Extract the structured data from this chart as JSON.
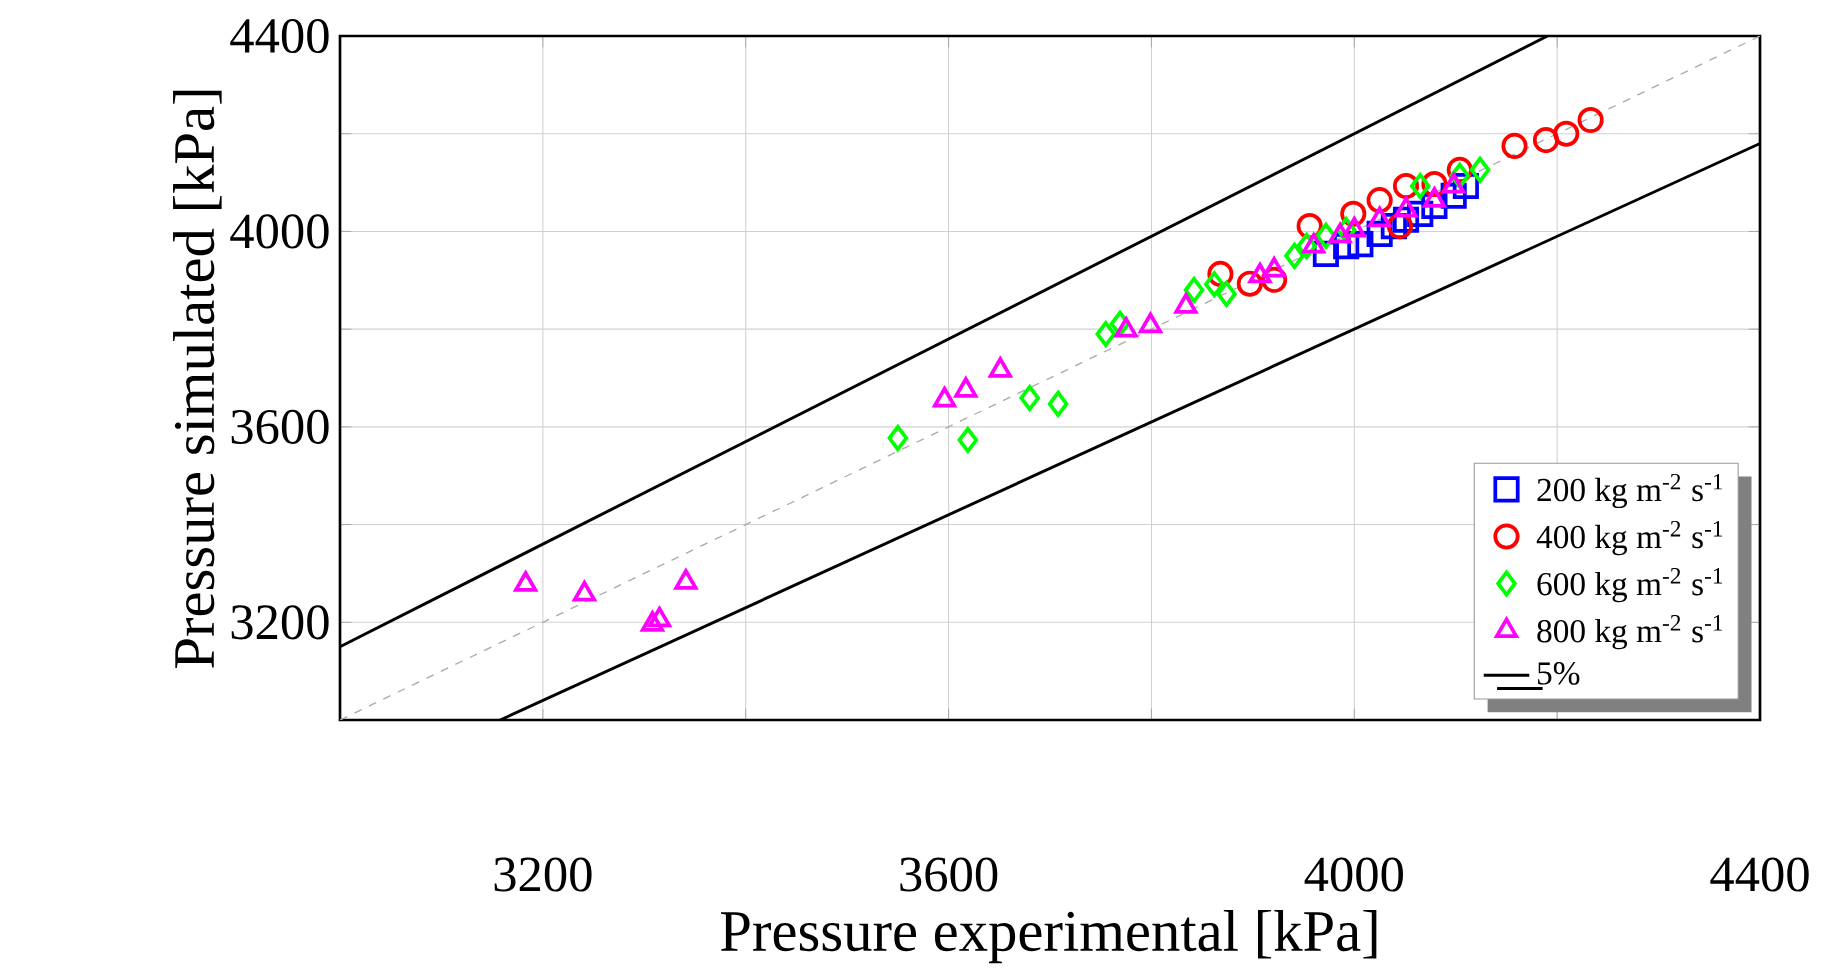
{
  "chart_data": {
    "type": "scatter",
    "xlabel": "Pressure experimental [kPa]",
    "ylabel": "Pressure simulated [kPa]",
    "xlim": [
      3000,
      4400
    ],
    "ylim": [
      3000,
      4400
    ],
    "xticks": [
      3200,
      {
        "value": 3400,
        "label": null
      },
      3600,
      {
        "value": 3800,
        "label": null
      },
      4000,
      {
        "value": 4200,
        "label": null
      },
      4400
    ],
    "yticks": [
      3200,
      {
        "value": 3400,
        "label": null
      },
      3600,
      {
        "value": 3800,
        "label": null
      },
      4000,
      {
        "value": 4200,
        "label": null
      },
      4400
    ],
    "grid": true,
    "legend": "bottom right",
    "series": [
      {
        "name": "200 kg m$^{-2}$ s$^{-1}$",
        "marker": "square",
        "color": "#0000ff",
        "x": [
          3972,
          3992,
          4006,
          4025,
          4039,
          4051,
          4065,
          4079,
          4098,
          4110
        ],
        "values": [
          3954,
          3970,
          3974,
          3995,
          4011,
          4024,
          4036,
          4052,
          4073,
          4093
        ]
      },
      {
        "name": "400 kg m$^{-2}$ s$^{-1}$",
        "marker": "circle",
        "color": "#ff0000",
        "x": [
          3868,
          3897,
          3921,
          3956,
          3999,
          4025,
          4045,
          4051,
          4079,
          4104,
          4158,
          4189,
          4209,
          4233
        ],
        "values": [
          3913,
          3893,
          3901,
          4011,
          4036,
          4064,
          4011,
          4093,
          4097,
          4126,
          4175,
          4187,
          4200,
          4228
        ]
      },
      {
        "name": "600 kg m$^{-2}$ s$^{-1}$",
        "marker": "diamond",
        "color": "#00ff00",
        "x": [
          3550,
          3619,
          3680,
          3708,
          3755,
          3769,
          3842,
          3862,
          3874,
          3941,
          3953,
          3972,
          3992,
          4065,
          4104,
          4124
        ],
        "values": [
          3577,
          3573,
          3659,
          3647,
          3790,
          3811,
          3880,
          3892,
          3872,
          3950,
          3970,
          3991,
          4003,
          4093,
          4114,
          4126
        ]
      },
      {
        "name": "800 kg m$^{-2}$ s$^{-1}$",
        "marker": "triangle",
        "color": "#ff00ff",
        "x": [
          3183,
          3241,
          3308,
          3315,
          3341,
          3596,
          3617,
          3651,
          3775,
          3799,
          3834,
          3907,
          3921,
          3960,
          3986,
          4000,
          4025,
          4051,
          4079,
          4098
        ],
        "values": [
          3278,
          3258,
          3196,
          3205,
          3282,
          3655,
          3675,
          3716,
          3798,
          3807,
          3847,
          3909,
          3921,
          3970,
          3991,
          4003,
          4024,
          4044,
          4064,
          4093
        ]
      },
      {
        "name": "5%",
        "type": "line",
        "marker": "none",
        "line_style": "solid",
        "color": "#000000",
        "x": [
          3000,
          4190.48
        ],
        "values": [
          3150,
          4400
        ]
      },
      {
        "type": "line",
        "marker": "none",
        "line_style": "solid",
        "color": "#000000",
        "x": [
          3157.89,
          4400
        ],
        "values": [
          3000,
          4180
        ]
      },
      {
        "type": "line",
        "marker": "none",
        "line_style": "dashed",
        "color": "#aaaaaa",
        "x": [
          3000,
          4400
        ],
        "values": [
          3000,
          4400
        ]
      }
    ]
  }
}
